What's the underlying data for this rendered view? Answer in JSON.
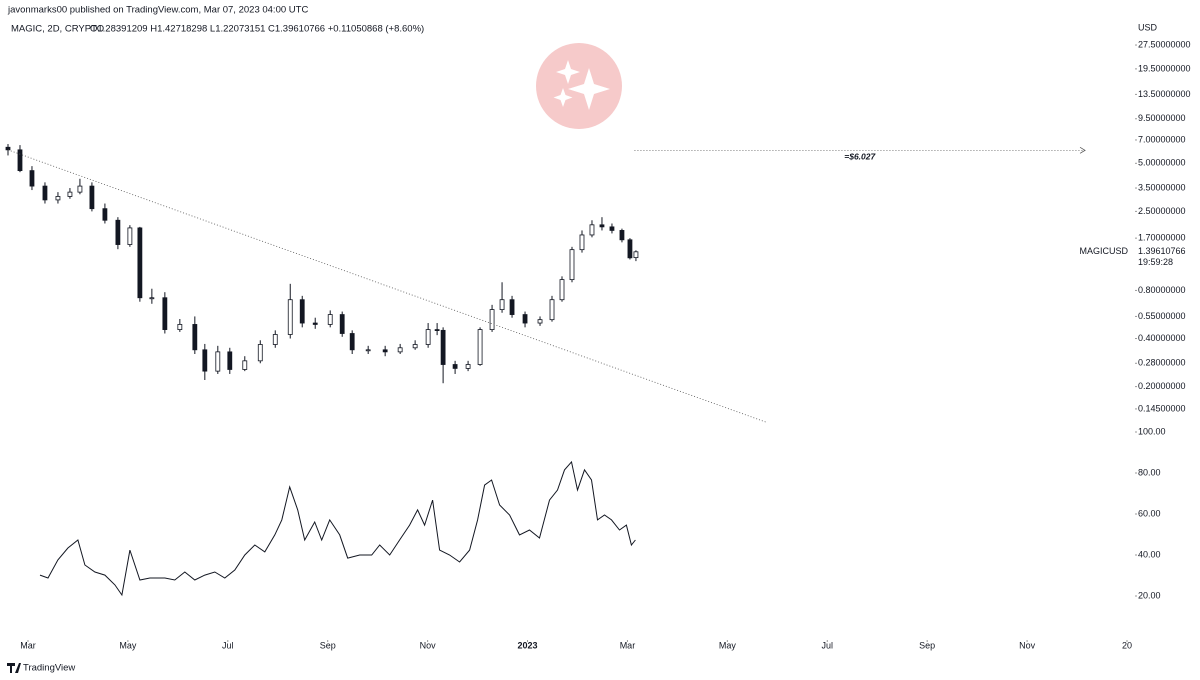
{
  "header": {
    "author": "javonmarks00 published on TradingView.com, Mar 07, 2023 04:00 UTC",
    "symbol": "MAGIC, 2D, CRYPTO",
    "ohlc": "O1.28391209 H1.42718298 L1.22073151 C1.39610766 +0.11050868 (+8.60%)",
    "currency": "USD",
    "brand": "TradingView"
  },
  "chart_data": [
    {
      "type": "candlestick",
      "log_scale": true,
      "up_color": "#ffffff",
      "down_color": "#131722",
      "x": [
        2.6,
        2.84,
        3.08,
        3.34,
        3.6,
        3.84,
        4.04,
        4.28,
        4.54,
        4.8,
        5.04,
        5.24,
        5.48,
        5.74,
        6.04,
        6.34,
        6.54,
        6.8,
        7.04,
        7.34,
        7.65,
        7.95,
        8.25,
        8.49,
        8.75,
        9.05,
        9.29,
        9.49,
        9.81,
        10.15,
        10.45,
        10.75,
        11.01,
        11.19,
        11.31,
        11.55,
        11.81,
        12.05,
        12.29,
        12.49,
        12.69,
        12.95,
        13.25,
        13.49,
        13.69,
        13.89,
        14.09,
        14.29,
        14.49,
        14.69,
        14.89,
        15.05,
        15.17
      ],
      "open": [
        6.3,
        6.07,
        4.5,
        3.6,
        2.95,
        3.1,
        3.3,
        3.6,
        2.6,
        2.2,
        1.55,
        1.97,
        0.72,
        0.72,
        0.455,
        0.49,
        0.34,
        0.25,
        0.33,
        0.256,
        0.29,
        0.367,
        0.424,
        0.7,
        0.5,
        0.49,
        0.565,
        0.43,
        0.34,
        0.34,
        0.33,
        0.35,
        0.367,
        0.455,
        0.45,
        0.275,
        0.26,
        0.275,
        0.455,
        0.607,
        0.7,
        0.565,
        0.5,
        0.525,
        0.7,
        0.935,
        1.44,
        1.78,
        2.06,
        2.0,
        1.9,
        1.66,
        1.28391209
      ],
      "high": [
        6.6,
        6.5,
        4.8,
        3.8,
        3.3,
        3.5,
        4.0,
        3.8,
        2.8,
        2.3,
        2.05,
        2.0,
        0.82,
        0.78,
        0.53,
        0.55,
        0.37,
        0.36,
        0.35,
        0.31,
        0.39,
        0.45,
        0.88,
        0.74,
        0.54,
        0.6,
        0.59,
        0.45,
        0.36,
        0.36,
        0.37,
        0.39,
        0.5,
        0.5,
        0.47,
        0.29,
        0.29,
        0.47,
        0.65,
        0.9,
        0.74,
        0.59,
        0.55,
        0.74,
        0.98,
        1.5,
        1.9,
        2.2,
        2.3,
        2.1,
        1.95,
        1.7,
        1.42718298
      ],
      "low": [
        5.6,
        4.4,
        3.4,
        2.8,
        2.8,
        3.0,
        3.2,
        2.5,
        2.1,
        1.45,
        1.5,
        0.68,
        0.66,
        0.43,
        0.44,
        0.32,
        0.22,
        0.24,
        0.24,
        0.25,
        0.28,
        0.35,
        0.4,
        0.47,
        0.46,
        0.47,
        0.41,
        0.32,
        0.32,
        0.31,
        0.32,
        0.34,
        0.35,
        0.42,
        0.21,
        0.24,
        0.25,
        0.27,
        0.44,
        0.58,
        0.54,
        0.47,
        0.48,
        0.51,
        0.68,
        0.9,
        1.38,
        1.72,
        1.9,
        1.82,
        1.6,
        1.25,
        1.22073151
      ],
      "close": [
        6.07,
        4.5,
        3.6,
        2.95,
        3.1,
        3.3,
        3.6,
        2.6,
        2.2,
        1.55,
        1.97,
        0.72,
        0.72,
        0.455,
        0.49,
        0.34,
        0.25,
        0.33,
        0.256,
        0.29,
        0.367,
        0.424,
        0.7,
        0.5,
        0.49,
        0.565,
        0.43,
        0.34,
        0.34,
        0.33,
        0.35,
        0.367,
        0.455,
        0.45,
        0.275,
        0.26,
        0.275,
        0.455,
        0.607,
        0.7,
        0.565,
        0.5,
        0.525,
        0.7,
        0.935,
        1.44,
        1.78,
        2.06,
        2.0,
        1.9,
        1.66,
        1.28,
        1.39610766
      ],
      "xlim": [
        2.44,
        25.16
      ],
      "ylim": [
        0.115,
        42.4
      ],
      "yticks": [
        {
          "value": 27.5,
          "label": "27.50000000"
        },
        {
          "value": 19.5,
          "label": "19.50000000"
        },
        {
          "value": 13.5,
          "label": "13.50000000"
        },
        {
          "value": 9.5,
          "label": "9.50000000"
        },
        {
          "value": 7,
          "label": "7.00000000"
        },
        {
          "value": 5,
          "label": "5.00000000"
        },
        {
          "value": 3.5,
          "label": "3.50000000"
        },
        {
          "value": 2.5,
          "label": "2.50000000"
        },
        {
          "value": 1.7,
          "label": "1.70000000"
        },
        {
          "value": 0.8,
          "label": "0.80000000"
        },
        {
          "value": 0.55,
          "label": "0.55000000"
        },
        {
          "value": 0.4,
          "label": "0.40000000"
        },
        {
          "value": 0.28,
          "label": "0.28000000"
        },
        {
          "value": 0.2,
          "label": "0.20000000"
        },
        {
          "value": 0.145,
          "label": "0.14500000"
        }
      ],
      "trendline": {
        "x": [
          2.6,
          17.8
        ],
        "values": [
          6.07,
          0.119
        ]
      },
      "target": {
        "x": [
          15.14,
          24.16
        ],
        "value": 6.027,
        "label": "=$6.027"
      },
      "last_price": {
        "symbol": "MAGICUSD",
        "value": 1.39610766,
        "label": "1.39610766",
        "countdown": "19:59:28"
      }
    },
    {
      "type": "line",
      "color": "#131722",
      "x": [
        3.24,
        3.4,
        3.6,
        3.8,
        4.0,
        4.14,
        4.34,
        4.54,
        4.74,
        4.88,
        5.04,
        5.24,
        5.44,
        5.74,
        5.94,
        6.14,
        6.34,
        6.54,
        6.74,
        6.94,
        7.14,
        7.34,
        7.54,
        7.74,
        7.94,
        8.08,
        8.24,
        8.4,
        8.54,
        8.74,
        8.88,
        9.04,
        9.24,
        9.4,
        9.64,
        9.88,
        10.04,
        10.24,
        10.44,
        10.64,
        10.8,
        10.94,
        11.1,
        11.24,
        11.44,
        11.64,
        11.84,
        12.0,
        12.14,
        12.28,
        12.44,
        12.64,
        12.84,
        13.04,
        13.24,
        13.44,
        13.6,
        13.74,
        13.88,
        14.0,
        14.14,
        14.28,
        14.4,
        14.54,
        14.68,
        14.84,
        14.98,
        15.08,
        15.16
      ],
      "values": [
        30.2,
        28.8,
        37.6,
        43.4,
        47.3,
        35.1,
        31.7,
        30.2,
        25.4,
        20.5,
        42.4,
        27.8,
        28.8,
        28.8,
        27.8,
        31.7,
        27.8,
        30.2,
        31.7,
        28.8,
        32.7,
        40,
        44.9,
        41.5,
        49.8,
        57.1,
        73.2,
        62,
        47.3,
        56.1,
        47.3,
        57.1,
        49.8,
        38.5,
        40,
        40,
        44.9,
        40,
        47.3,
        54.6,
        62,
        54.6,
        66.8,
        42.4,
        40,
        36.6,
        42.4,
        57.1,
        74.1,
        76.6,
        64.4,
        59.5,
        49.8,
        52.2,
        48.3,
        66.8,
        71.7,
        81.5,
        85.4,
        71.7,
        81.5,
        76.6,
        57.1,
        59.5,
        57.1,
        52.2,
        54.6,
        44.9,
        47.3
      ],
      "xlim": [
        2.44,
        25.16
      ],
      "ylim": [
        0,
        100
      ],
      "yticks": [
        {
          "value": 100,
          "label": "100.00"
        },
        {
          "value": 80,
          "label": "80.00"
        },
        {
          "value": 60,
          "label": "60.00"
        },
        {
          "value": 40,
          "label": "40.00"
        },
        {
          "value": 20,
          "label": "20.00"
        }
      ],
      "xticks": [
        {
          "value": 3,
          "label": "Mar"
        },
        {
          "value": 5,
          "label": "May"
        },
        {
          "value": 7,
          "label": "Jul"
        },
        {
          "value": 9,
          "label": "Sep"
        },
        {
          "value": 11,
          "label": "Nov"
        },
        {
          "value": 13,
          "label": "2023"
        },
        {
          "value": 15,
          "label": "Mar"
        },
        {
          "value": 17,
          "label": "May"
        },
        {
          "value": 19,
          "label": "Jul"
        },
        {
          "value": 21,
          "label": "Sep"
        },
        {
          "value": 23,
          "label": "Nov"
        },
        {
          "value": 25,
          "label": "20"
        }
      ]
    }
  ]
}
